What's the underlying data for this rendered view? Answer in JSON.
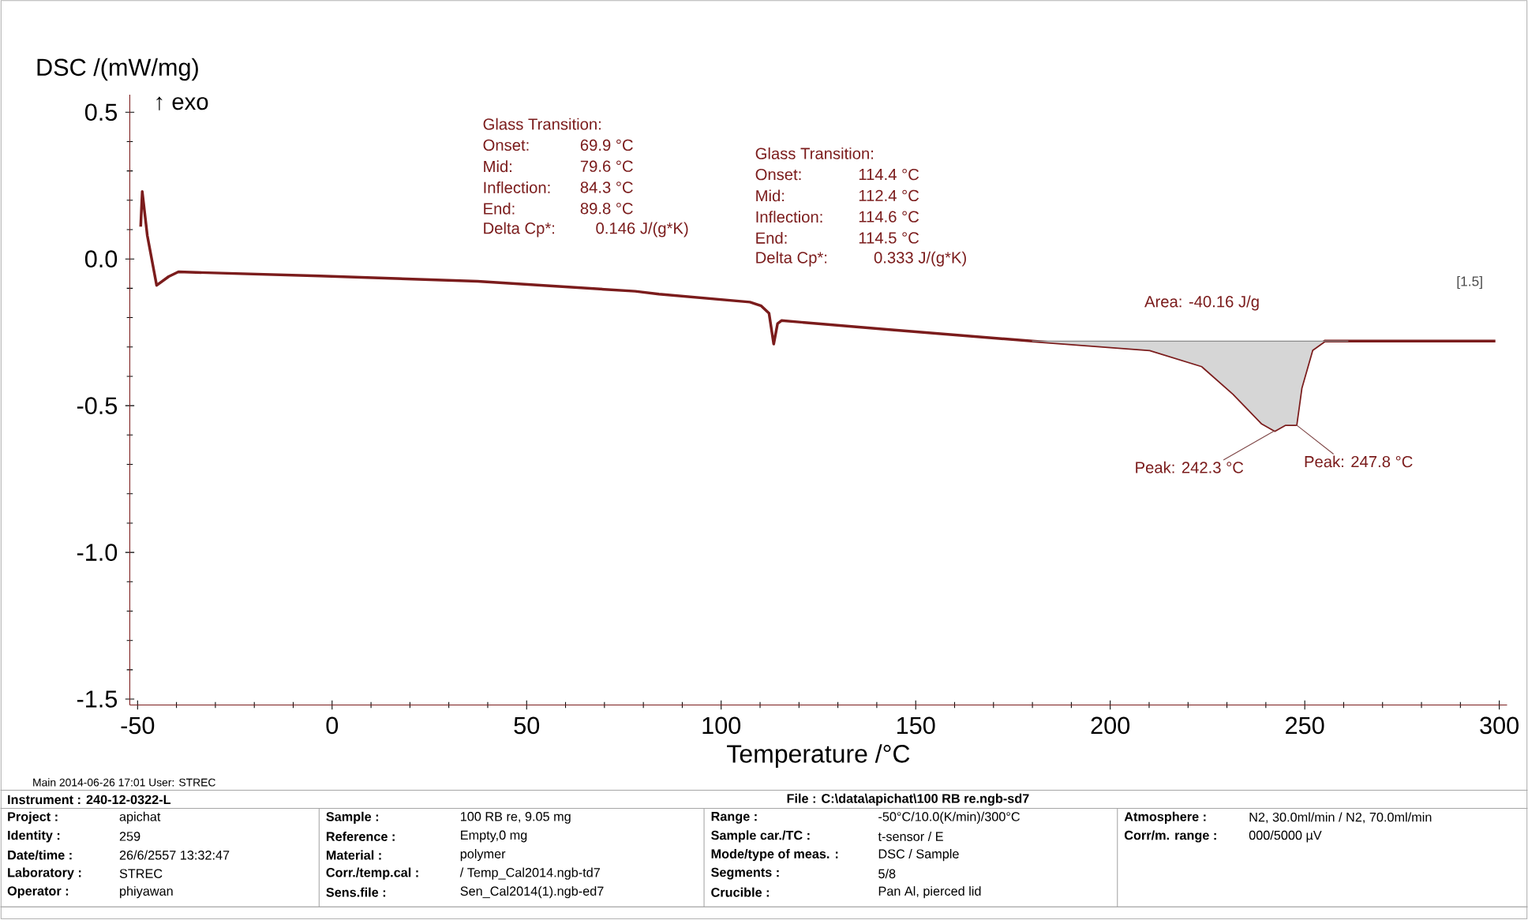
{
  "chart_data": {
    "type": "line",
    "xlabel": "Temperature /°C",
    "ylabel": "DSC /(mW/mg)",
    "xlim": [
      -52,
      302
    ],
    "ylim": [
      -1.52,
      0.56
    ],
    "xticks": [
      -50,
      0,
      50,
      100,
      150,
      200,
      250,
      300
    ],
    "yticks": [
      0.5,
      {
        "value": 0,
        "label": "0.0"
      },
      -0.5,
      {
        "value": -1,
        "label": "-1.0"
      },
      -1.5
    ],
    "grid": false,
    "marker": "none",
    "line_style": "solid",
    "series": [
      {
        "color": "#7b1c1c",
        "x": [
          -49.2,
          -48.8,
          -47.5,
          -45.1,
          -42,
          -39.5,
          -3.1,
          37.4,
          77.9,
          84,
          107.4,
          110.3,
          112.3,
          113.5,
          114.5,
          115.5,
          142.6,
          179.9,
          210.2,
          223.6,
          231.7,
          239,
          242.3,
          245,
          247.8,
          249.1,
          251.9,
          255.1,
          296.4,
          299
        ],
        "values": [
          0.11,
          0.23,
          0.08,
          -0.09,
          -0.06,
          -0.044,
          -0.058,
          -0.076,
          -0.11,
          -0.12,
          -0.147,
          -0.16,
          -0.185,
          -0.29,
          -0.22,
          -0.21,
          -0.24,
          -0.28,
          -0.31,
          -0.365,
          -0.46,
          -0.56,
          -0.585,
          -0.565,
          -0.565,
          -0.44,
          -0.31,
          -0.28,
          -0.28,
          -0.28
        ]
      },
      {
        "type": "line",
        "color": "#8a8a8a",
        "x": [
          179.9,
          210.2,
          223.6,
          231.7,
          239,
          242.3,
          245,
          247.8,
          249.1,
          251.9,
          255.1,
          261.2
        ],
        "values": [
          -0.28,
          -0.28,
          -0.28,
          -0.28,
          -0.28,
          -0.28,
          -0.28,
          -0.28,
          -0.28,
          -0.28,
          -0.28,
          -0.28
        ],
        "lower": [
          -0.28,
          -0.31,
          -0.365,
          -0.46,
          -0.56,
          -0.585,
          -0.565,
          -0.565,
          -0.44,
          -0.31,
          -0.28,
          -0.28
        ],
        "upper": [
          -0.28,
          -0.28,
          -0.28,
          -0.28,
          -0.28,
          -0.28,
          -0.28,
          -0.28,
          -0.28,
          -0.28,
          -0.28,
          -0.28
        ]
      }
    ],
    "annotations": [
      "↑ exo",
      "Glass Transition:",
      "Onset:",
      "69.9 °C",
      "Mid:",
      "79.6 °C",
      "Inflection:",
      "84.3 °C",
      "End:",
      "89.8 °C",
      "Delta Cp*:",
      "0.146 J/(g*K)",
      "Glass Transition:",
      "Onset:",
      "114.4 °C",
      "Mid:",
      "112.4 °C",
      "Inflection:",
      "114.6 °C",
      "End:",
      "114.5 °C",
      "Delta Cp*:",
      "0.333 J/(g*K)",
      "Area: -40.16 J/g",
      {
        "text": "Peak: 242.3 °C",
        "x": 242.3,
        "y": -0.585
      },
      {
        "text": "Peak: 247.8 °C",
        "x": 247.8,
        "y": -0.565
      },
      "[1.5]",
      "Main  2014-06-26 17:01  User: STREC",
      "Instrument : 240-12-0322-L",
      "File : C:\\data\\apichat\\100 RB  re.ngb-sd7",
      "Project :",
      "apichat",
      "Sample :",
      "100 RB re, 9.05 mg",
      "Range :",
      "-50°C/10.0(K/min)/300°C",
      "Atmosphere :",
      "N2, 30.0ml/min / N2, 70.0ml/min",
      "Identity :",
      "259",
      "Reference :",
      "Empty,0 mg",
      "Sample car./TC :",
      "t-sensor / E",
      "Corr/m. range :",
      "000/5000 µV",
      "Date/time :",
      "26/6/2557 13:32:47",
      "Material :",
      "polymer",
      "Mode/type of meas. :",
      "DSC / Sample",
      "Laboratory :",
      "STREC",
      "Corr./temp.cal :",
      "/ Temp_Cal2014.ngb-td7",
      "Segments :",
      "5/8",
      "Operator :",
      "phiyawan",
      "Sens.file :",
      "Sen_Cal2014(1).ngb-ed7",
      "Crucible :",
      "Pan Al, pierced lid"
    ]
  }
}
